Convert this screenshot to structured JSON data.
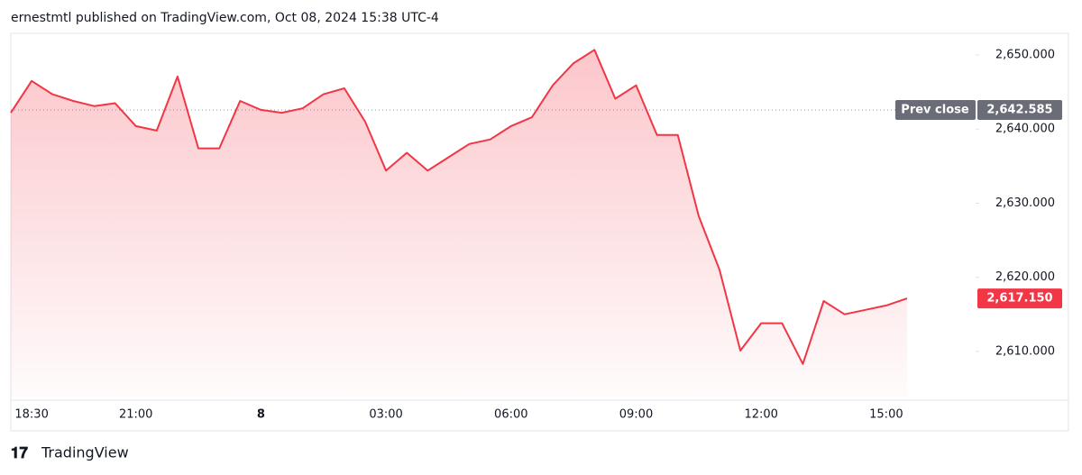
{
  "chart_data": {
    "type": "area",
    "title": "ernestmtl published on TradingView.com, Oct 08, 2024 15:38 UTC-4",
    "brand": "TradingView",
    "categories": [
      null,
      "18:30",
      null,
      null,
      null,
      null,
      "21:00",
      null,
      null,
      null,
      null,
      null,
      "8",
      null,
      null,
      null,
      null,
      null,
      "03:00",
      null,
      null,
      null,
      null,
      null,
      "06:00",
      null,
      null,
      null,
      null,
      null,
      "09:00",
      null,
      null,
      null,
      null,
      null,
      "12:00",
      null,
      null,
      null,
      null,
      null,
      "15:00",
      null
    ],
    "series": [
      {
        "color": "#f23645",
        "values": [
          2642.2,
          2646.5,
          2644.7,
          2643.8,
          2643.1,
          2643.5,
          2640.4,
          2639.8,
          2647.1,
          2637.4,
          2637.4,
          2643.8,
          2642.6,
          2642.2,
          2642.8,
          2644.7,
          2645.5,
          2641.0,
          2634.4,
          2636.8,
          2634.4,
          2636.2,
          2638.0,
          2638.6,
          2640.4,
          2641.6,
          2645.9,
          2648.9,
          2650.7,
          2644.1,
          2645.9,
          2639.2,
          2639.2,
          2628.3,
          2621.0,
          2610.1,
          2613.8,
          2613.8,
          2608.3,
          2616.8,
          2615.0,
          2615.6,
          2616.2,
          2617.15
        ]
      }
    ],
    "ylim": [
      2603.9,
      2652.8
    ],
    "yticks": [
      {
        "value": 2610,
        "label": "2,610.000"
      },
      {
        "value": 2620,
        "label": "2,620.000"
      },
      {
        "value": 2630,
        "label": "2,630.000"
      },
      {
        "value": 2640,
        "label": "2,640.000"
      },
      {
        "value": 2650,
        "label": "2,650.000"
      }
    ],
    "prev_close": {
      "label": "Prev close",
      "value": 2642.585,
      "value_label": "2,642.585"
    },
    "last_price": {
      "value": 2617.15,
      "label": "2,617.150",
      "color": "#f23645"
    }
  }
}
